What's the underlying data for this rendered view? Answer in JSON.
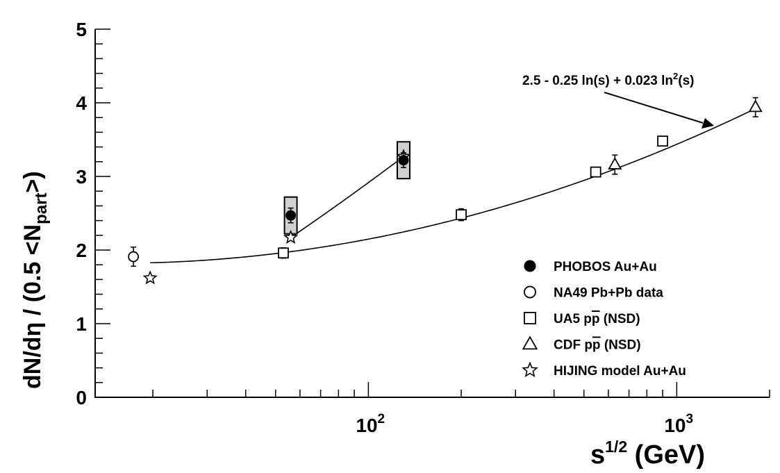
{
  "chart_data": {
    "type": "scatter",
    "x_scale": "log",
    "xlim": [
      13,
      2000
    ],
    "ylim": [
      0,
      5
    ],
    "y_ticks": [
      0,
      1,
      2,
      3,
      4,
      5
    ],
    "x_tick_labels": [
      {
        "value": 100,
        "base": "10",
        "exp": "2"
      },
      {
        "value": 1000,
        "base": "10",
        "exp": "3"
      }
    ],
    "xlabel": {
      "base": "s",
      "sup": "1/2",
      "rest": " (GeV)"
    },
    "ylabel": {
      "main": "dN/dη / (0.5 <N",
      "sub": "part",
      "end": ">)"
    },
    "annotation": {
      "pre": "2.5 - 0.25 ln(s) + 0.023 ln",
      "sup": "2",
      "post": "(s)"
    },
    "grid": false,
    "legend_placement": "bottom-right",
    "series": [
      {
        "name": "PHOBOS Au+Au",
        "marker": "filled-circle",
        "points": [
          {
            "x": 56,
            "y": 2.47,
            "err": 0.1,
            "sys": 0.25
          },
          {
            "x": 130,
            "y": 3.22,
            "err": 0.1,
            "sys": 0.25
          }
        ]
      },
      {
        "name": "NA49 Pb+Pb data",
        "marker": "open-circle",
        "points": [
          {
            "x": 17.3,
            "y": 1.91,
            "err": 0.13
          }
        ]
      },
      {
        "name": "UA5 pp̅ (NSD)",
        "legend_pre": "UA5 ",
        "legend_bar": "pp",
        "legend_post": " (NSD)",
        "marker": "open-square",
        "points": [
          {
            "x": 53,
            "y": 1.96,
            "err": 0.07
          },
          {
            "x": 200,
            "y": 2.48,
            "err": 0.08
          },
          {
            "x": 546,
            "y": 3.06,
            "err": 0.06
          },
          {
            "x": 900,
            "y": 3.48,
            "err": 0.05
          }
        ]
      },
      {
        "name": "CDF pp̅ (NSD)",
        "legend_pre": "CDF ",
        "legend_bar": "pp",
        "legend_post": " (NSD)",
        "marker": "open-triangle",
        "points": [
          {
            "x": 630,
            "y": 3.16,
            "err": 0.13
          },
          {
            "x": 1800,
            "y": 3.94,
            "err": 0.13
          }
        ]
      },
      {
        "name": "HIJING model Au+Au",
        "marker": "open-star",
        "points": [
          {
            "x": 19.6,
            "y": 1.62
          },
          {
            "x": 56,
            "y": 2.17
          },
          {
            "x": 130,
            "y": 3.27
          }
        ]
      }
    ],
    "curves": [
      {
        "kind": "formula",
        "label": "2.5 - 0.25 ln(s) + 0.023 ln²(s)",
        "coef": [
          2.5,
          -0.25,
          0.023
        ],
        "x_range": [
          19.6,
          1850
        ]
      },
      {
        "kind": "hijing-fit",
        "x_range": [
          56,
          130
        ]
      }
    ]
  }
}
